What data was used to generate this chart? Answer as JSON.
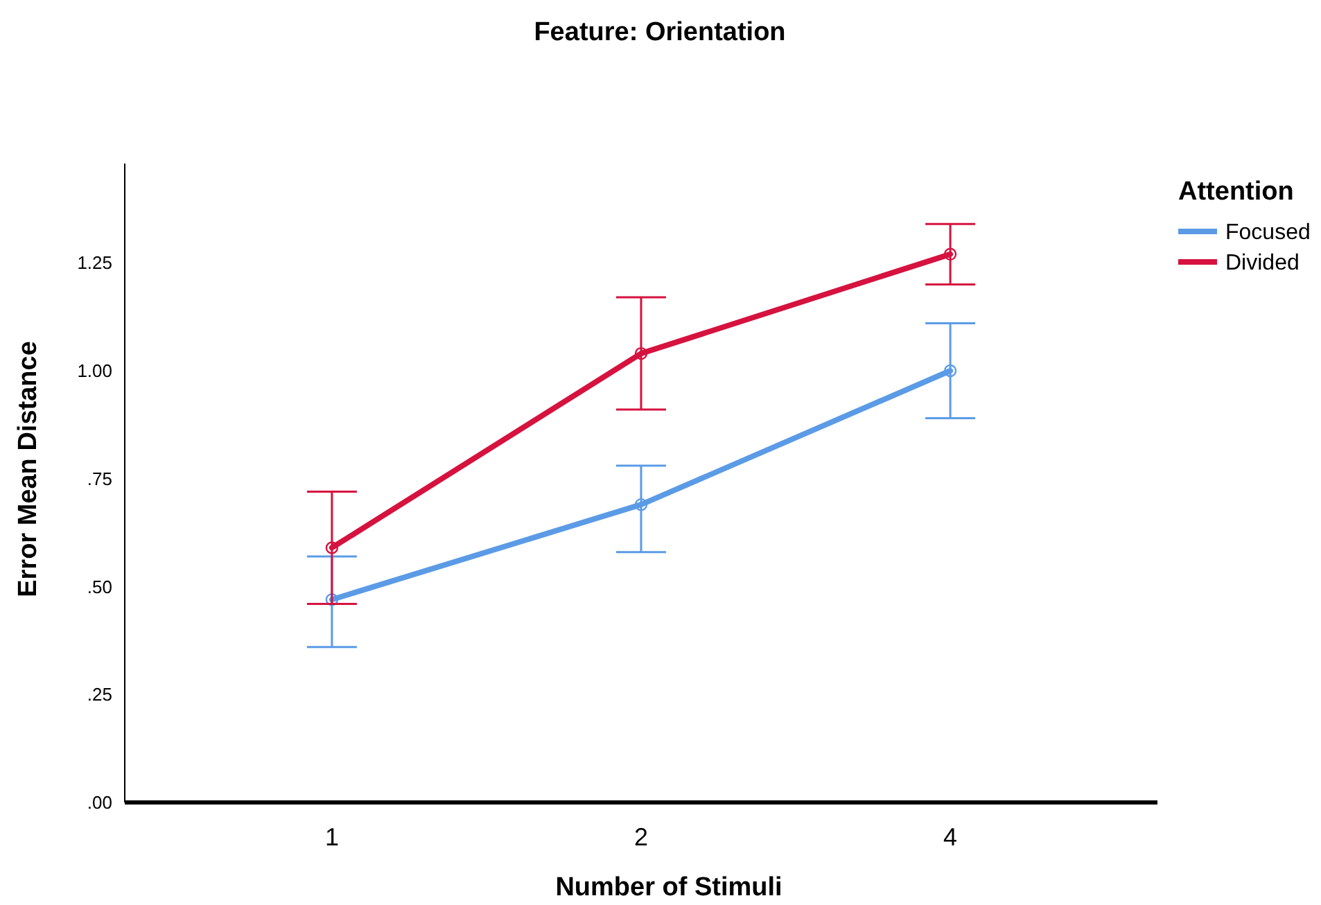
{
  "chart_data": {
    "type": "line",
    "title": "Feature: Orientation",
    "xlabel": "Number of Stimuli",
    "ylabel": "Error Mean Distance",
    "legend_title": "Attention",
    "legend": "right",
    "marker": "circle",
    "grid": false,
    "categories": [
      "1",
      "2",
      "4"
    ],
    "ylim": [
      0,
      1.48
    ],
    "yticks": [
      {
        "value": 0,
        "label": ".00"
      },
      {
        "value": 0.25,
        "label": ".25"
      },
      {
        "value": 0.5,
        "label": ".50"
      },
      {
        "value": 0.75,
        "label": ".75"
      },
      {
        "value": 1,
        "label": "1.00"
      },
      {
        "value": 1.25,
        "label": "1.25"
      }
    ],
    "series": [
      {
        "name": "Focused",
        "color": "#5b9be6",
        "values": [
          0.47,
          0.69,
          1.0
        ],
        "errors": [
          [
            0.36,
            0.57
          ],
          [
            0.58,
            0.78
          ],
          [
            0.89,
            1.11
          ]
        ]
      },
      {
        "name": "Divided",
        "color": "#d6123f",
        "values": [
          0.59,
          1.04,
          1.27
        ],
        "errors": [
          [
            0.46,
            0.72
          ],
          [
            0.91,
            1.17
          ],
          [
            1.2,
            1.34
          ]
        ]
      }
    ]
  }
}
